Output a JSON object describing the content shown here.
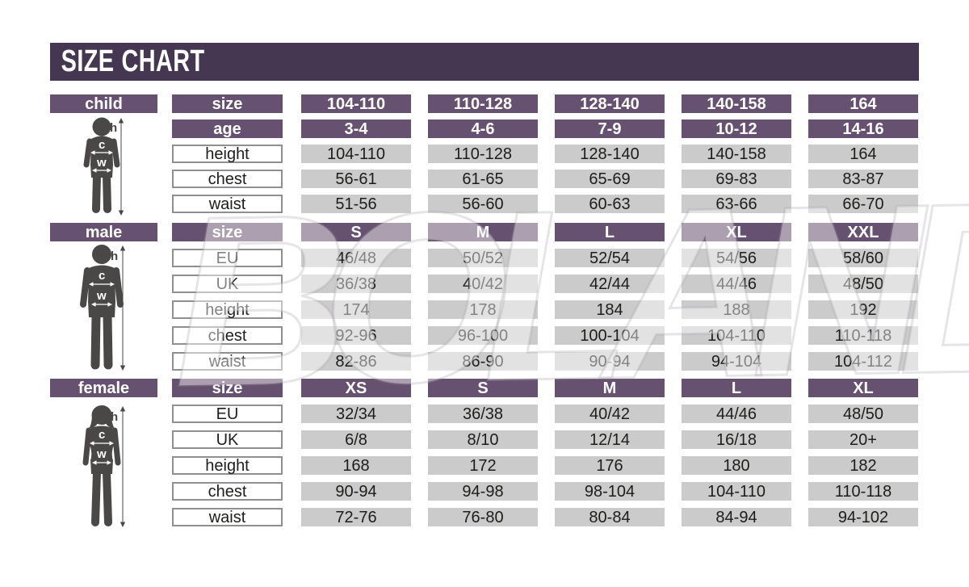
{
  "title": "SIZE CHART",
  "watermark": "BOLAND",
  "colors": {
    "title_bar": "#453751",
    "header_purple": "#675170",
    "cell_gray": "#cbcbcb",
    "text_dark": "#1d1d1b",
    "silhouette": "#4a4747"
  },
  "measures": {
    "height": "h",
    "chest": "c",
    "waist": "w"
  },
  "figures": [
    "child-silhouette",
    "male-silhouette",
    "female-silhouette"
  ],
  "chart_data": [
    {
      "type": "table",
      "title": "child",
      "rows": [
        {
          "label": "size",
          "header": true,
          "values": [
            "104-110",
            "110-128",
            "128-140",
            "140-158",
            "164"
          ]
        },
        {
          "label": "age",
          "header": true,
          "values": [
            "3-4",
            "4-6",
            "7-9",
            "10-12",
            "14-16"
          ]
        },
        {
          "label": "height",
          "header": false,
          "values": [
            "104-110",
            "110-128",
            "128-140",
            "140-158",
            "164"
          ]
        },
        {
          "label": "chest",
          "header": false,
          "values": [
            "56-61",
            "61-65",
            "65-69",
            "69-83",
            "83-87"
          ]
        },
        {
          "label": "waist",
          "header": false,
          "values": [
            "51-56",
            "56-60",
            "60-63",
            "63-66",
            "66-70"
          ]
        }
      ]
    },
    {
      "type": "table",
      "title": "male",
      "rows": [
        {
          "label": "size",
          "header": true,
          "values": [
            "S",
            "M",
            "L",
            "XL",
            "XXL"
          ]
        },
        {
          "label": "EU",
          "header": false,
          "values": [
            "46/48",
            "50/52",
            "52/54",
            "54/56",
            "58/60"
          ]
        },
        {
          "label": "UK",
          "header": false,
          "values": [
            "36/38",
            "40/42",
            "42/44",
            "44/46",
            "48/50"
          ]
        },
        {
          "label": "height",
          "header": false,
          "values": [
            "174",
            "178",
            "184",
            "188",
            "192"
          ]
        },
        {
          "label": "chest",
          "header": false,
          "values": [
            "92-96",
            "96-100",
            "100-104",
            "104-110",
            "110-118"
          ]
        },
        {
          "label": "waist",
          "header": false,
          "values": [
            "82-86",
            "86-90",
            "90-94",
            "94-104",
            "104-112"
          ]
        }
      ]
    },
    {
      "type": "table",
      "title": "female",
      "rows": [
        {
          "label": "size",
          "header": true,
          "values": [
            "XS",
            "S",
            "M",
            "L",
            "XL"
          ]
        },
        {
          "label": "EU",
          "header": false,
          "values": [
            "32/34",
            "36/38",
            "40/42",
            "44/46",
            "48/50"
          ]
        },
        {
          "label": "UK",
          "header": false,
          "values": [
            "6/8",
            "8/10",
            "12/14",
            "16/18",
            "20+"
          ]
        },
        {
          "label": "height",
          "header": false,
          "values": [
            "168",
            "172",
            "176",
            "180",
            "182"
          ]
        },
        {
          "label": "chest",
          "header": false,
          "values": [
            "90-94",
            "94-98",
            "98-104",
            "104-110",
            "110-118"
          ]
        },
        {
          "label": "waist",
          "header": false,
          "values": [
            "72-76",
            "76-80",
            "80-84",
            "84-94",
            "94-102"
          ]
        }
      ]
    }
  ]
}
